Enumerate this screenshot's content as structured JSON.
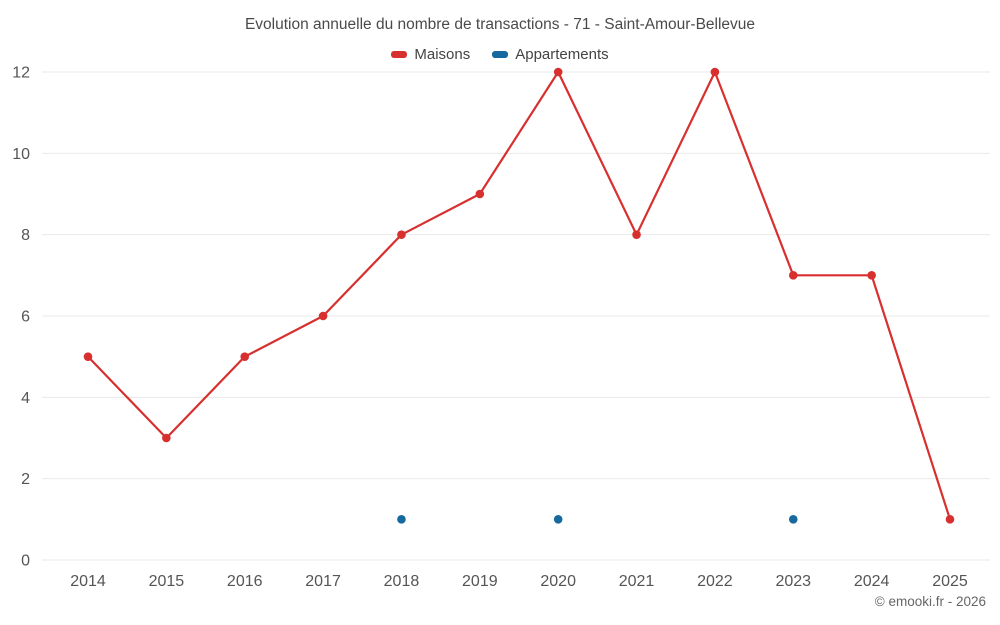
{
  "title": "Evolution annuelle du nombre de transactions - 71 - Saint-Amour-Bellevue",
  "legend": [
    {
      "label": "Maisons",
      "color": "#d7302f"
    },
    {
      "label": "Appartements",
      "color": "#16699e"
    }
  ],
  "footer": {
    "copyright": "© emooki.fr - 2026"
  },
  "chart_data": {
    "type": "line",
    "title": "Evolution annuelle du nombre de transactions - 71 - Saint-Amour-Bellevue",
    "x": [
      2014,
      2015,
      2016,
      2017,
      2018,
      2019,
      2020,
      2021,
      2022,
      2023,
      2024,
      2025
    ],
    "series": [
      {
        "name": "Maisons",
        "color": "#d7302f",
        "style": "line+markers",
        "values": [
          5,
          3,
          5,
          6,
          8,
          9,
          12,
          8,
          12,
          7,
          7,
          1
        ]
      },
      {
        "name": "Appartements",
        "color": "#16699e",
        "style": "markers",
        "values": [
          null,
          null,
          null,
          null,
          1,
          null,
          1,
          null,
          null,
          1,
          null,
          null
        ]
      }
    ],
    "xlabel": "",
    "ylabel": "",
    "ylim": [
      0,
      12
    ],
    "yticks": [
      0,
      2,
      4,
      6,
      8,
      10,
      12
    ],
    "grid": "horizontal",
    "legend_position": "top"
  }
}
